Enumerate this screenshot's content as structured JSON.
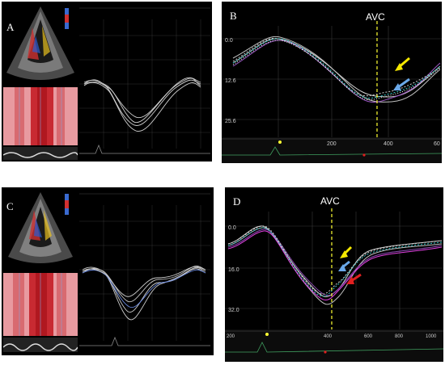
{
  "panels": {
    "A": {
      "label": "A"
    },
    "B": {
      "label": "B",
      "avc_label": "AVC",
      "y_ticks": [
        "0.0",
        "12.6",
        "25.6"
      ],
      "x_ticks": [
        "200",
        "400",
        "60"
      ]
    },
    "C": {
      "label": "C"
    },
    "D": {
      "label": "D",
      "avc_label": "AVC",
      "y_ticks": [
        "0.0",
        "16.0",
        "32.0"
      ],
      "x_ticks": [
        "200",
        "400",
        "600",
        "800",
        "1000"
      ]
    }
  },
  "colors": {
    "trace_bg": "#000000",
    "ruler_bg": "#0c0c0c",
    "avc_line": "#ffff33",
    "arrow_yellow": "#f5e800",
    "arrow_blue": "#6aa8e8",
    "arrow_red": "#e02020"
  }
}
